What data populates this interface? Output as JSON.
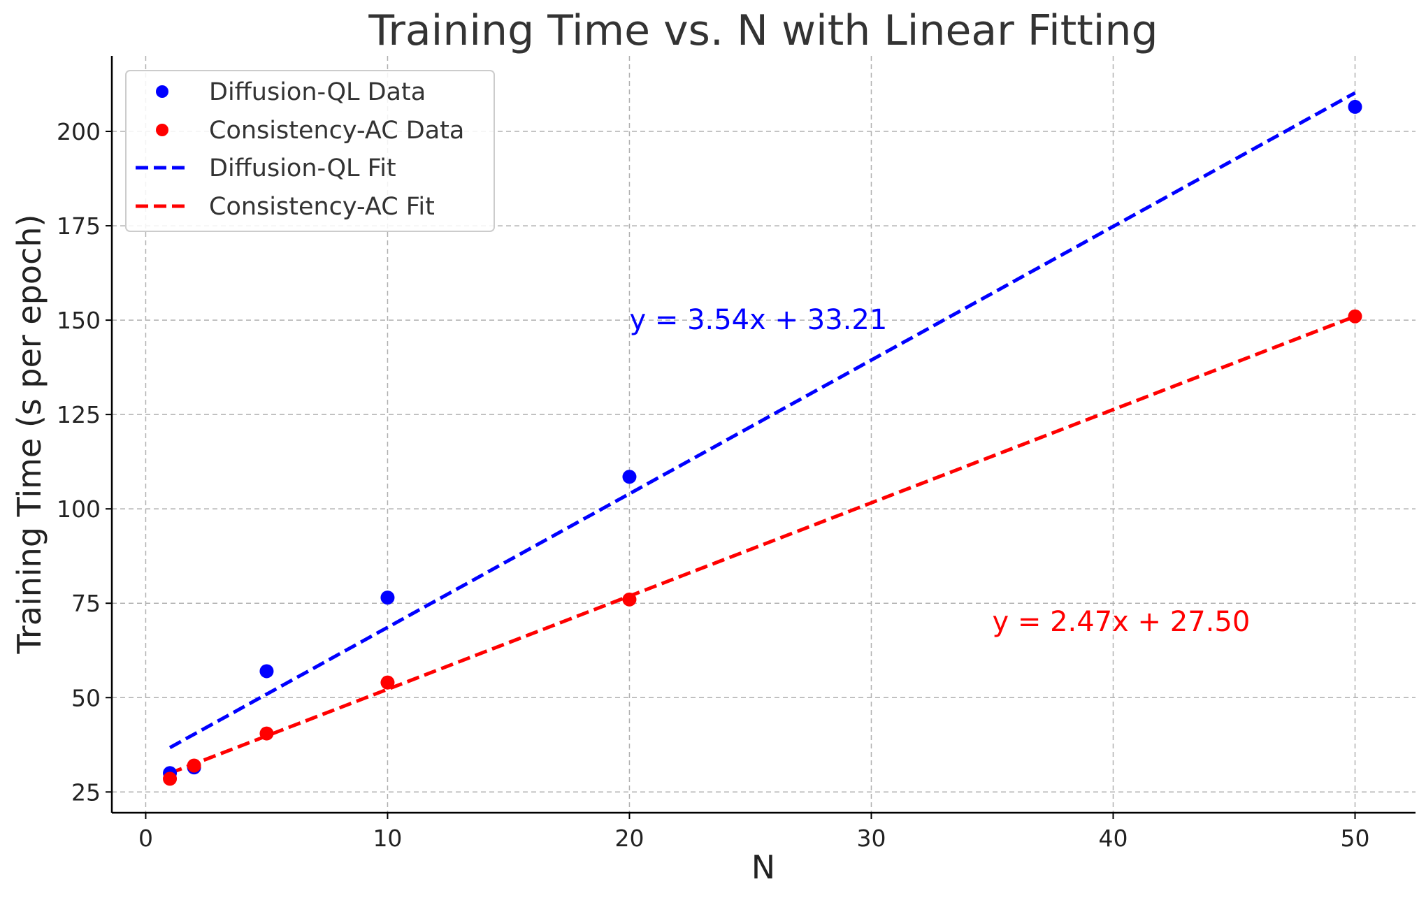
{
  "chart_data": {
    "type": "scatter",
    "title": "Training Time vs. N with Linear Fitting",
    "xlabel": "N",
    "ylabel": "Training Time (s per epoch)",
    "xlim": [
      -1.4,
      52.5
    ],
    "ylim": [
      19.5,
      220
    ],
    "xticks": [
      0,
      10,
      20,
      30,
      40,
      50
    ],
    "yticks": [
      25,
      50,
      75,
      100,
      125,
      150,
      175,
      200
    ],
    "grid": true,
    "legend_position": "top-left",
    "series": [
      {
        "name": "Diffusion-QL Data",
        "kind": "scatter",
        "color": "#0000ff",
        "x": [
          1,
          2,
          5,
          10,
          20,
          50
        ],
        "y": [
          30,
          31.5,
          57,
          76.5,
          108.5,
          206.5
        ]
      },
      {
        "name": "Consistency-AC Data",
        "kind": "scatter",
        "color": "#ff0000",
        "x": [
          1,
          2,
          5,
          10,
          20,
          50
        ],
        "y": [
          28.5,
          32,
          40.5,
          54,
          76,
          151
        ]
      },
      {
        "name": "Diffusion-QL Fit",
        "kind": "line",
        "style": "dashed",
        "color": "#0000ff",
        "slope": 3.54,
        "intercept": 33.21,
        "x_range": [
          1,
          50
        ]
      },
      {
        "name": "Consistency-AC Fit",
        "kind": "line",
        "style": "dashed",
        "color": "#ff0000",
        "slope": 2.47,
        "intercept": 27.5,
        "x_range": [
          1,
          50
        ]
      }
    ],
    "annotations": [
      {
        "text": "y = 3.54x + 33.21",
        "x": 20,
        "y": 150,
        "color": "#0000ff"
      },
      {
        "text": "y = 2.47x + 27.50",
        "x": 35,
        "y": 70,
        "color": "#ff0000"
      }
    ]
  }
}
